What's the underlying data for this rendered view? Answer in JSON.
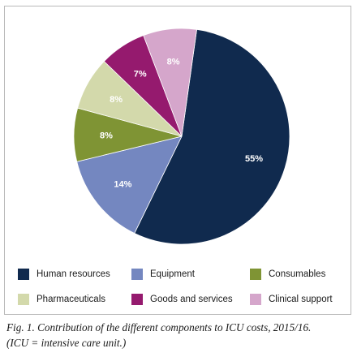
{
  "chart_data": {
    "type": "pie",
    "slices": [
      {
        "label": "Human resources",
        "value": 55,
        "display": "55%",
        "color": "#102a4e",
        "label_color": "#ffffff"
      },
      {
        "label": "Equipment",
        "value": 14,
        "display": "14%",
        "color": "#7487c0",
        "label_color": "#ffffff"
      },
      {
        "label": "Consumables",
        "value": 8,
        "display": "8%",
        "color": "#7f9434",
        "label_color": "#ffffff"
      },
      {
        "label": "Pharmaceuticals",
        "value": 8,
        "display": "8%",
        "color": "#d3d9ab",
        "label_color": "#ffffff"
      },
      {
        "label": "Goods and services",
        "value": 7,
        "display": "7%",
        "color": "#951a6e",
        "label_color": "#ffffff"
      },
      {
        "label": "Clinical support",
        "value": 8,
        "display": "8%",
        "color": "#d5a6cb",
        "label_color": "#ffffff"
      }
    ],
    "legend_position": "bottom"
  },
  "legend": [
    {
      "label": "Human resources",
      "color": "#102a4e"
    },
    {
      "label": "Equipment",
      "color": "#7487c0"
    },
    {
      "label": "Consumables",
      "color": "#7f9434"
    },
    {
      "label": "Pharmaceuticals",
      "color": "#d3d9ab"
    },
    {
      "label": "Goods and services",
      "color": "#951a6e"
    },
    {
      "label": "Clinical support",
      "color": "#d5a6cb"
    }
  ],
  "caption": {
    "line1": "Fig. 1. Contribution of the different components to ICU costs, 2015/16.",
    "line2": "(ICU = intensive care unit.)"
  }
}
